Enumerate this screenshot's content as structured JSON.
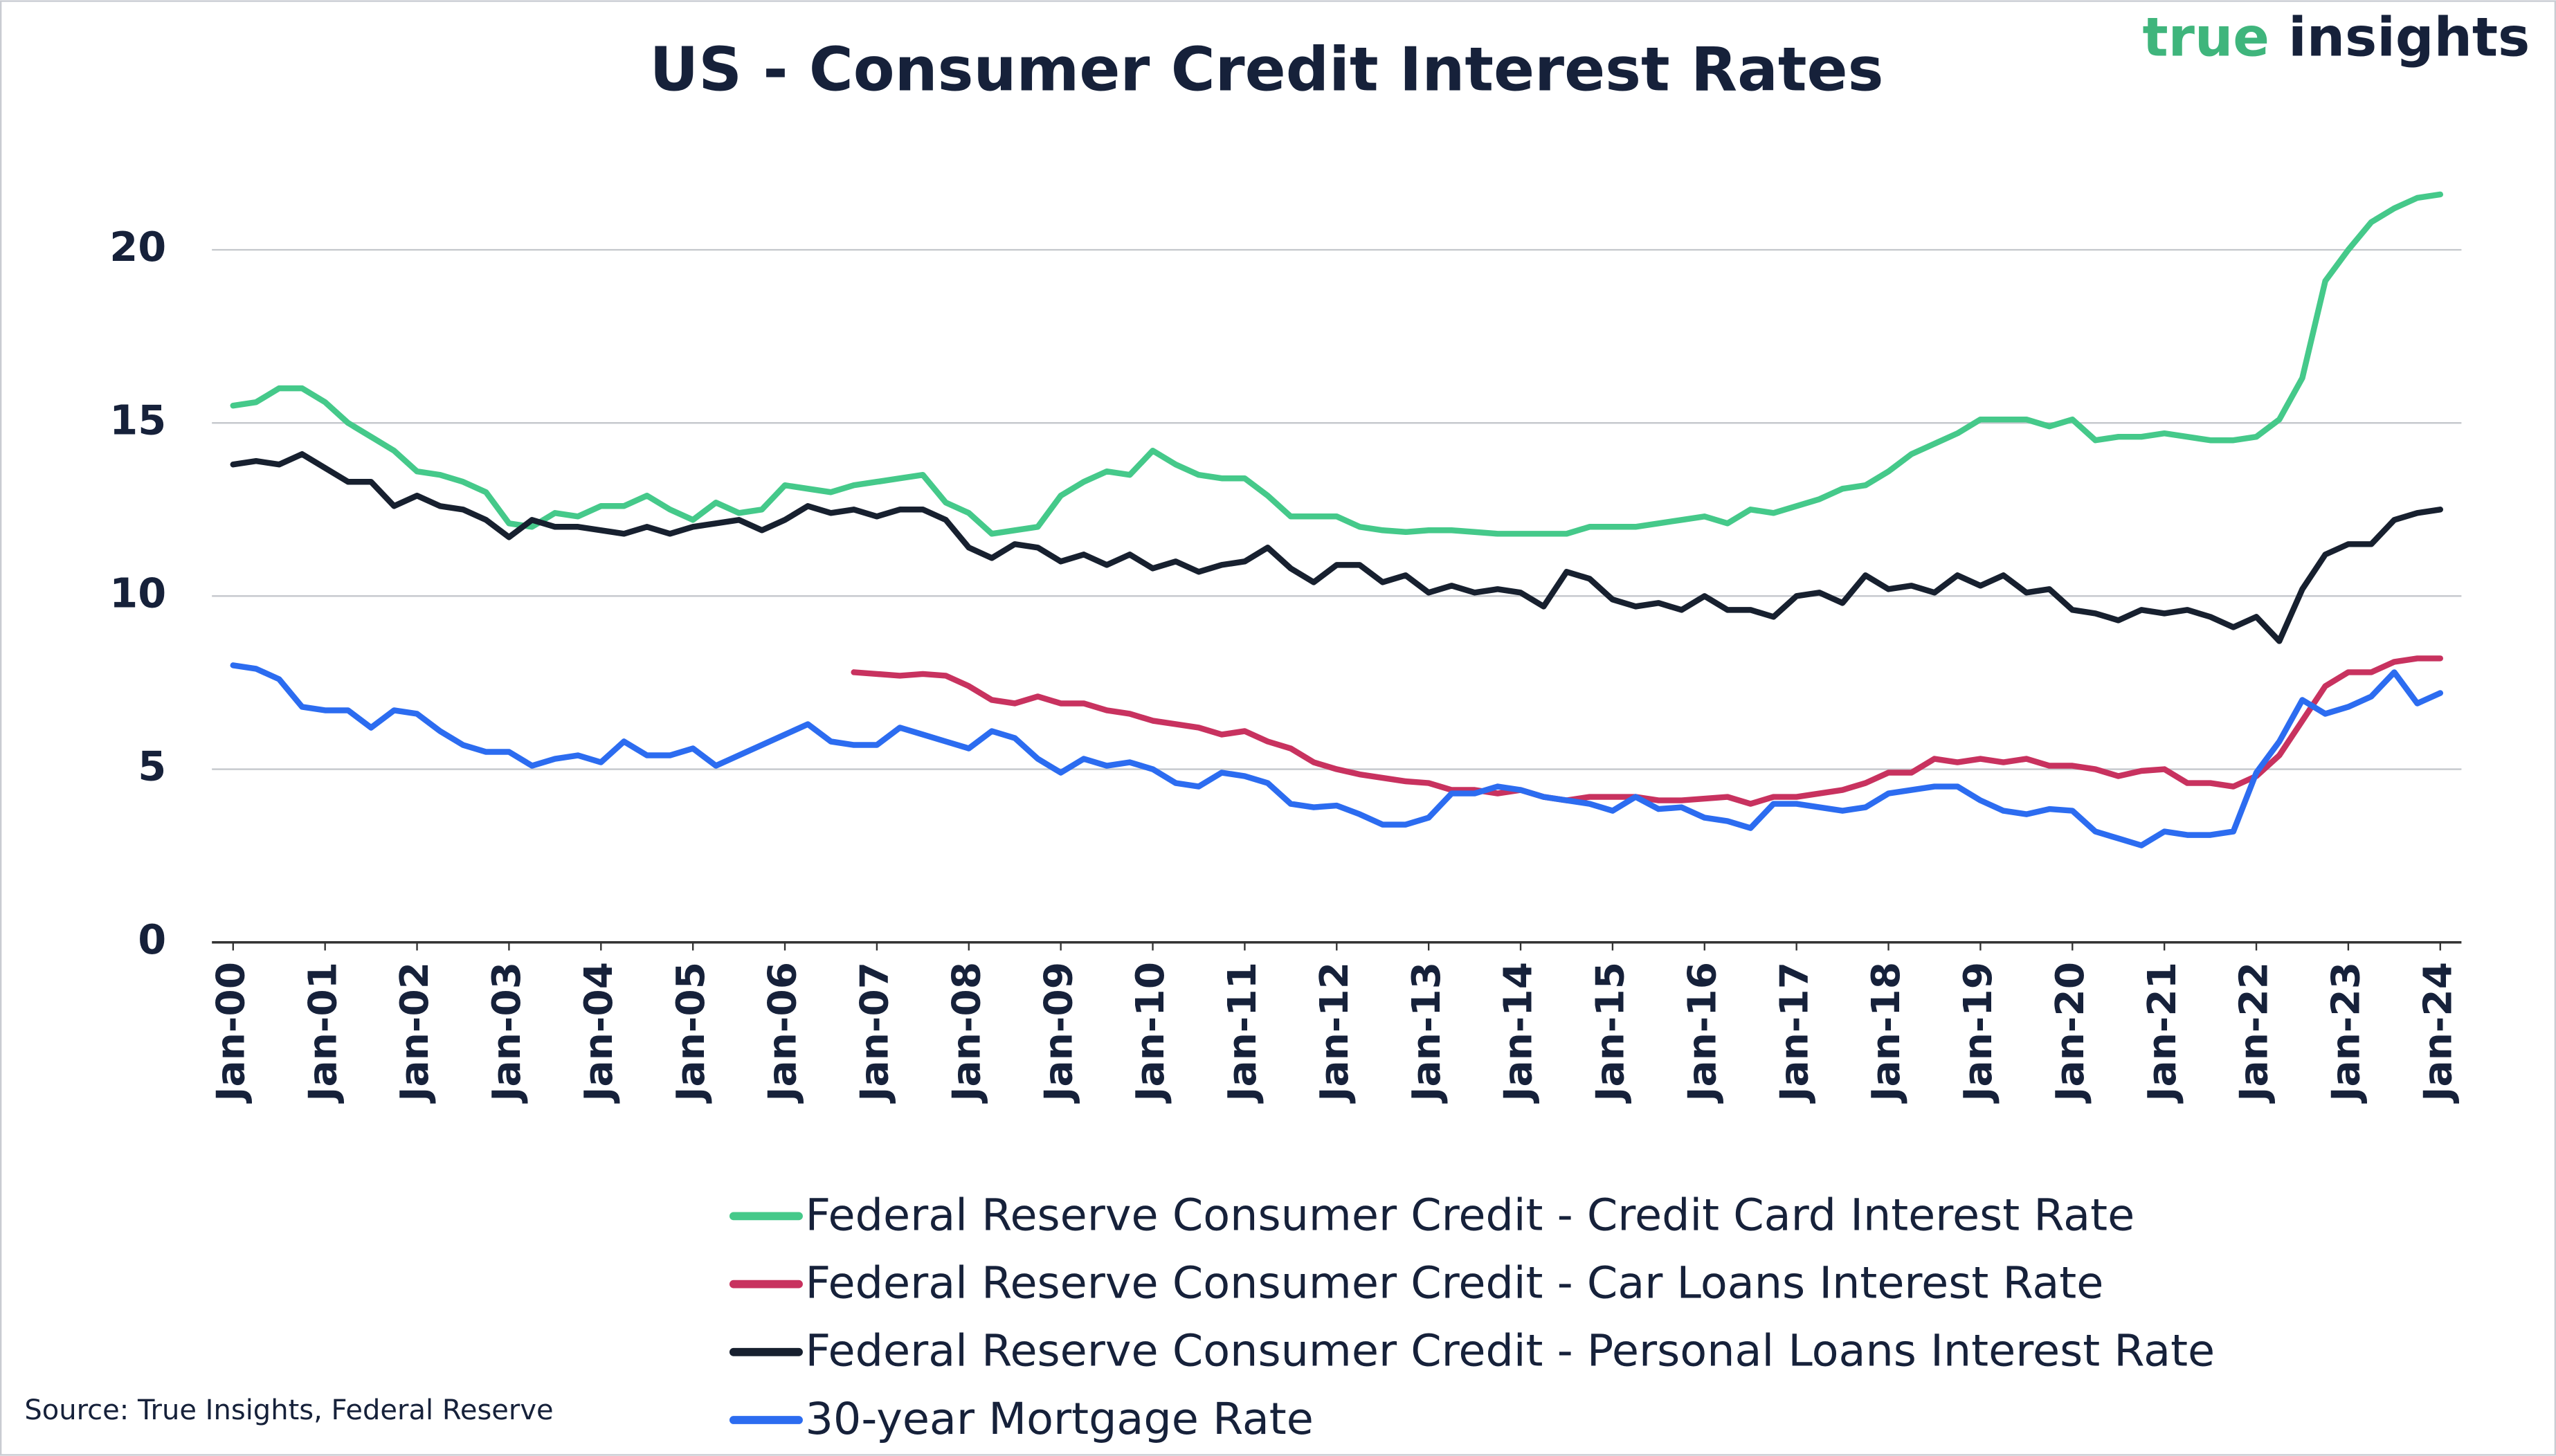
{
  "chart_data": {
    "type": "line",
    "title": "US - Consumer Credit Interest Rates",
    "brand": [
      "true",
      "insights"
    ],
    "source": "Source: True Insights, Federal Reserve",
    "categories": [
      "Jan-00",
      null,
      null,
      null,
      "Jan-01",
      null,
      null,
      null,
      "Jan-02",
      null,
      null,
      null,
      "Jan-03",
      null,
      null,
      null,
      "Jan-04",
      null,
      null,
      null,
      "Jan-05",
      null,
      null,
      null,
      "Jan-06",
      null,
      null,
      null,
      "Jan-07",
      null,
      null,
      null,
      "Jan-08",
      null,
      null,
      null,
      "Jan-09",
      null,
      null,
      null,
      "Jan-10",
      null,
      null,
      null,
      "Jan-11",
      null,
      null,
      null,
      "Jan-12",
      null,
      null,
      null,
      "Jan-13",
      null,
      null,
      null,
      "Jan-14",
      null,
      null,
      null,
      "Jan-15",
      null,
      null,
      null,
      "Jan-16",
      null,
      null,
      null,
      "Jan-17",
      null,
      null,
      null,
      "Jan-18",
      null,
      null,
      null,
      "Jan-19",
      null,
      null,
      null,
      "Jan-20",
      null,
      null,
      null,
      "Jan-21",
      null,
      null,
      null,
      "Jan-22",
      null,
      null,
      null,
      "Jan-23",
      null,
      null,
      null,
      "Jan-24"
    ],
    "series": [
      {
        "name": "Federal Reserve Consumer Credit - Credit Card Interest Rate",
        "color": "#45c98a",
        "values": [
          15.5,
          15.6,
          16.0,
          16.0,
          15.6,
          15.0,
          14.6,
          14.2,
          13.6,
          13.5,
          13.3,
          13.0,
          12.1,
          12.0,
          12.4,
          12.3,
          12.6,
          12.6,
          12.9,
          12.5,
          12.2,
          12.7,
          12.4,
          12.5,
          13.2,
          13.1,
          13.0,
          13.2,
          13.3,
          13.4,
          13.5,
          12.7,
          12.4,
          11.8,
          11.9,
          12.0,
          12.9,
          13.3,
          13.6,
          13.5,
          14.2,
          13.8,
          13.5,
          13.4,
          13.4,
          12.9,
          12.3,
          12.3,
          12.3,
          12.0,
          11.9,
          11.85,
          11.9,
          11.9,
          11.85,
          11.8,
          11.8,
          11.8,
          11.8,
          12.0,
          12.0,
          12.0,
          12.1,
          12.2,
          12.3,
          12.1,
          12.5,
          12.4,
          12.6,
          12.8,
          13.1,
          13.2,
          13.6,
          14.1,
          14.4,
          14.7,
          15.1,
          15.1,
          15.1,
          14.9,
          15.1,
          14.5,
          14.6,
          14.6,
          14.7,
          14.6,
          14.5,
          14.5,
          14.6,
          15.1,
          16.3,
          19.1,
          20.0,
          20.8,
          21.2,
          21.5,
          21.6
        ]
      },
      {
        "name": "Federal Reserve Consumer Credit - Car Loans Interest Rate",
        "color": "#c8325f",
        "values": [
          null,
          null,
          null,
          null,
          null,
          null,
          null,
          null,
          null,
          null,
          null,
          null,
          null,
          null,
          null,
          null,
          null,
          null,
          null,
          null,
          null,
          null,
          null,
          null,
          null,
          null,
          null,
          7.8,
          7.75,
          7.7,
          7.75,
          7.7,
          7.4,
          7.0,
          6.9,
          7.1,
          6.9,
          6.9,
          6.7,
          6.6,
          6.4,
          6.3,
          6.2,
          6.0,
          6.1,
          5.8,
          5.6,
          5.2,
          5.0,
          4.85,
          4.75,
          4.65,
          4.6,
          4.4,
          4.4,
          4.3,
          4.4,
          4.2,
          4.1,
          4.2,
          4.2,
          4.2,
          4.1,
          4.1,
          4.15,
          4.2,
          4.0,
          4.2,
          4.2,
          4.3,
          4.4,
          4.6,
          4.9,
          4.9,
          5.3,
          5.2,
          5.3,
          5.2,
          5.3,
          5.1,
          5.1,
          5.0,
          4.8,
          4.95,
          5.0,
          4.6,
          4.6,
          4.5,
          4.8,
          5.4,
          6.4,
          7.4,
          7.8,
          7.8,
          8.1,
          8.2,
          8.2
        ]
      },
      {
        "name": "Federal Reserve Consumer Credit - Personal Loans Interest Rate",
        "color": "#17202f",
        "values": [
          13.8,
          13.9,
          13.8,
          14.1,
          13.7,
          13.3,
          13.3,
          12.6,
          12.9,
          12.6,
          12.5,
          12.2,
          11.7,
          12.2,
          12.0,
          12.0,
          11.9,
          11.8,
          12.0,
          11.8,
          12.0,
          12.1,
          12.2,
          11.9,
          12.2,
          12.6,
          12.4,
          12.5,
          12.3,
          12.5,
          12.5,
          12.2,
          11.4,
          11.1,
          11.5,
          11.4,
          11.0,
          11.2,
          10.9,
          11.2,
          10.8,
          11.0,
          10.7,
          10.9,
          11.0,
          11.4,
          10.8,
          10.4,
          10.9,
          10.9,
          10.4,
          10.6,
          10.1,
          10.3,
          10.1,
          10.2,
          10.1,
          9.7,
          10.7,
          10.5,
          9.9,
          9.7,
          9.8,
          9.6,
          10.0,
          9.6,
          9.6,
          9.4,
          10.0,
          10.1,
          9.8,
          10.6,
          10.2,
          10.3,
          10.1,
          10.6,
          10.3,
          10.6,
          10.1,
          10.2,
          9.6,
          9.5,
          9.3,
          9.6,
          9.5,
          9.6,
          9.4,
          9.1,
          9.4,
          8.7,
          10.2,
          11.2,
          11.5,
          11.5,
          12.2,
          12.4,
          12.5
        ]
      },
      {
        "name": "30-year Mortgage Rate",
        "color": "#2c6cf0",
        "values": [
          8.0,
          7.9,
          7.6,
          6.8,
          6.7,
          6.7,
          6.2,
          6.7,
          6.6,
          6.1,
          5.7,
          5.5,
          5.5,
          5.1,
          5.3,
          5.4,
          5.2,
          5.8,
          5.4,
          5.4,
          5.6,
          5.1,
          5.4,
          5.7,
          6.0,
          6.3,
          5.8,
          5.7,
          5.7,
          6.2,
          6.0,
          5.8,
          5.6,
          6.1,
          5.9,
          5.3,
          4.9,
          5.3,
          5.1,
          5.2,
          5.0,
          4.6,
          4.5,
          4.9,
          4.8,
          4.6,
          4.0,
          3.9,
          3.95,
          3.7,
          3.4,
          3.4,
          3.6,
          4.3,
          4.3,
          4.5,
          4.4,
          4.2,
          4.1,
          4.0,
          3.8,
          4.2,
          3.85,
          3.9,
          3.6,
          3.5,
          3.3,
          4.0,
          4.0,
          3.9,
          3.8,
          3.9,
          4.3,
          4.4,
          4.5,
          4.5,
          4.1,
          3.8,
          3.7,
          3.85,
          3.8,
          3.2,
          3.0,
          2.8,
          3.2,
          3.1,
          3.1,
          3.2,
          4.9,
          5.8,
          7.0,
          6.6,
          6.8,
          7.1,
          7.8,
          6.9,
          7.2
        ]
      }
    ],
    "ylim": [
      0,
      22.5
    ],
    "yticks": [
      0,
      5,
      10,
      15,
      20
    ],
    "grid": true
  }
}
